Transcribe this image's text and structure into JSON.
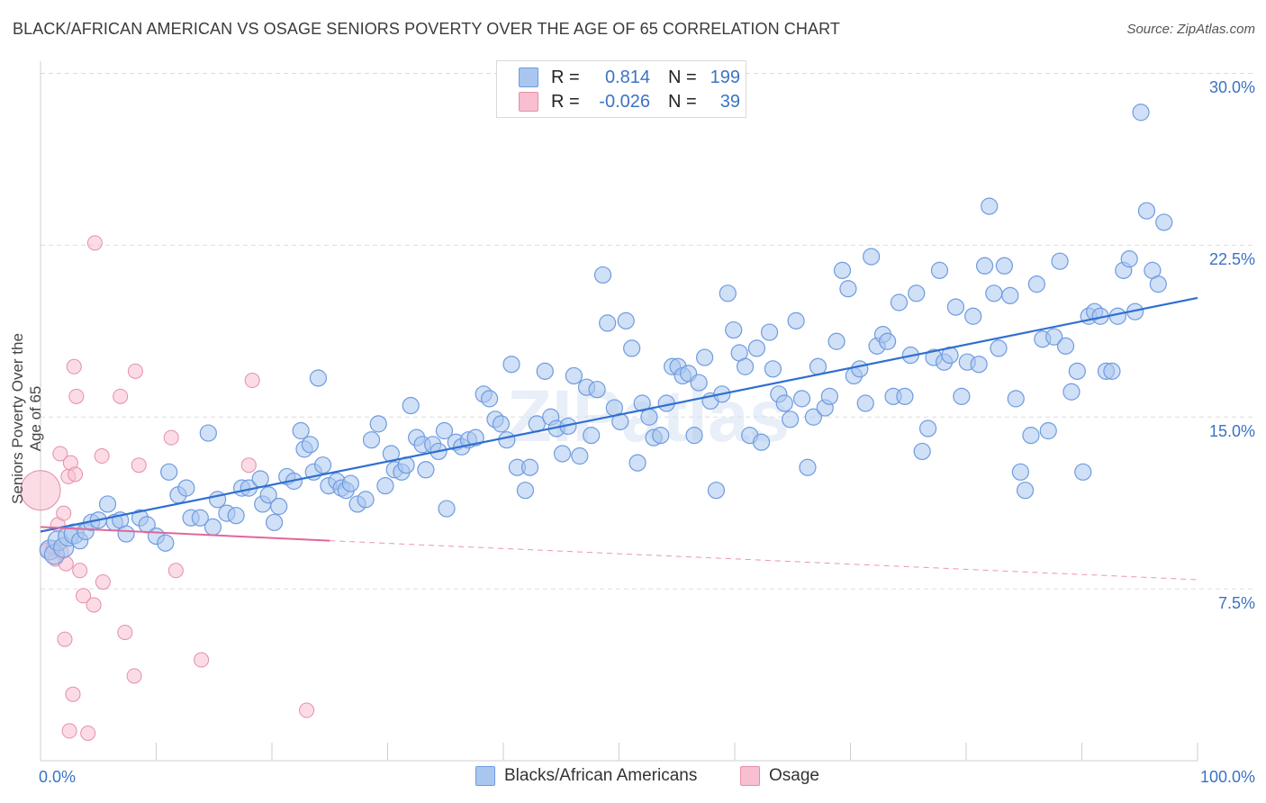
{
  "title": "BLACK/AFRICAN AMERICAN VS OSAGE SENIORS POVERTY OVER THE AGE OF 65 CORRELATION CHART",
  "source": "Source: ZipAtlas.com",
  "watermark": "ZIPatlas",
  "legend_top": {
    "rows": [
      {
        "r_label": "R =",
        "r_value": "0.814",
        "n_label": "N =",
        "n_value": "199"
      },
      {
        "r_label": "R =",
        "r_value": "-0.026",
        "n_label": "N =",
        "n_value": "39"
      }
    ]
  },
  "legend_bottom": {
    "series1": "Blacks/African Americans",
    "series2": "Osage"
  },
  "axes": {
    "ylabel": "Seniors Poverty Over the Age of 65",
    "x_min_label": "0.0%",
    "x_max_label": "100.0%",
    "y_ticks": [
      "30.0%",
      "22.5%",
      "15.0%",
      "7.5%"
    ]
  },
  "colors": {
    "blue_fill": "#a9c6ee",
    "blue_stroke": "#6f9be0",
    "blue_line": "#2f6fd0",
    "pink_fill": "#f7bfd0",
    "pink_stroke": "#e58eab",
    "pink_line": "#e0679a",
    "grid": "#dcdcdc",
    "tick_text": "#3a73c4"
  },
  "chart_data": {
    "type": "scatter",
    "title": "BLACK/AFRICAN AMERICAN VS OSAGE SENIORS POVERTY OVER THE AGE OF 65 CORRELATION CHART",
    "xlabel": "",
    "ylabel": "Seniors Poverty Over the Age of 65",
    "xlim": [
      0,
      100
    ],
    "ylim": [
      0,
      31
    ],
    "y_gridlines": [
      7.5,
      15,
      22.5,
      30
    ],
    "series": [
      {
        "name": "Blacks/African Americans",
        "r": 0.814,
        "n": 199,
        "trend": {
          "x": [
            0,
            100
          ],
          "y": [
            10.0,
            20.2
          ]
        },
        "points": [
          [
            0.8,
            9.2
          ],
          [
            1.2,
            9.0
          ],
          [
            1.5,
            9.6
          ],
          [
            2.0,
            9.3
          ],
          [
            2.4,
            9.8
          ],
          [
            2.9,
            9.9
          ],
          [
            3.4,
            9.6
          ],
          [
            3.9,
            10.0
          ],
          [
            4.4,
            10.4
          ],
          [
            5.0,
            10.5
          ],
          [
            5.8,
            11.2
          ],
          [
            6.4,
            10.4
          ],
          [
            6.9,
            10.5
          ],
          [
            7.4,
            9.9
          ],
          [
            8.6,
            10.6
          ],
          [
            9.2,
            10.3
          ],
          [
            10.0,
            9.8
          ],
          [
            10.8,
            9.5
          ],
          [
            11.1,
            12.6
          ],
          [
            11.9,
            11.6
          ],
          [
            12.6,
            11.9
          ],
          [
            13.0,
            10.6
          ],
          [
            13.8,
            10.6
          ],
          [
            14.5,
            14.3
          ],
          [
            14.9,
            10.2
          ],
          [
            15.3,
            11.4
          ],
          [
            16.1,
            10.8
          ],
          [
            16.9,
            10.7
          ],
          [
            17.4,
            11.9
          ],
          [
            18.0,
            11.9
          ],
          [
            19.0,
            12.3
          ],
          [
            19.2,
            11.2
          ],
          [
            19.7,
            11.6
          ],
          [
            20.2,
            10.4
          ],
          [
            20.6,
            11.1
          ],
          [
            21.3,
            12.4
          ],
          [
            21.9,
            12.2
          ],
          [
            22.5,
            14.4
          ],
          [
            22.8,
            13.6
          ],
          [
            23.3,
            13.8
          ],
          [
            23.6,
            12.6
          ],
          [
            24.0,
            16.7
          ],
          [
            24.4,
            12.9
          ],
          [
            24.9,
            12.0
          ],
          [
            25.6,
            12.2
          ],
          [
            26.0,
            11.9
          ],
          [
            26.4,
            11.8
          ],
          [
            26.8,
            12.1
          ],
          [
            27.4,
            11.2
          ],
          [
            28.1,
            11.4
          ],
          [
            28.6,
            14.0
          ],
          [
            29.2,
            14.7
          ],
          [
            29.8,
            12.0
          ],
          [
            30.3,
            13.4
          ],
          [
            30.6,
            12.7
          ],
          [
            31.2,
            12.6
          ],
          [
            31.6,
            12.9
          ],
          [
            32.0,
            15.5
          ],
          [
            32.5,
            14.1
          ],
          [
            33.0,
            13.8
          ],
          [
            33.3,
            12.7
          ],
          [
            33.9,
            13.8
          ],
          [
            34.4,
            13.5
          ],
          [
            34.9,
            14.4
          ],
          [
            35.1,
            11.0
          ],
          [
            35.9,
            13.9
          ],
          [
            36.4,
            13.7
          ],
          [
            37.0,
            14.0
          ],
          [
            37.6,
            14.1
          ],
          [
            38.3,
            16.0
          ],
          [
            38.8,
            15.8
          ],
          [
            39.3,
            14.9
          ],
          [
            39.8,
            14.7
          ],
          [
            40.3,
            14.0
          ],
          [
            40.7,
            17.3
          ],
          [
            41.2,
            12.8
          ],
          [
            41.9,
            11.8
          ],
          [
            42.3,
            12.8
          ],
          [
            42.9,
            14.7
          ],
          [
            43.6,
            17.0
          ],
          [
            44.1,
            15.0
          ],
          [
            44.6,
            14.5
          ],
          [
            45.1,
            13.4
          ],
          [
            45.6,
            14.6
          ],
          [
            46.1,
            16.8
          ],
          [
            46.6,
            13.3
          ],
          [
            47.2,
            16.3
          ],
          [
            47.6,
            14.2
          ],
          [
            48.1,
            16.2
          ],
          [
            48.6,
            21.2
          ],
          [
            49.0,
            19.1
          ],
          [
            49.6,
            15.4
          ],
          [
            50.1,
            14.8
          ],
          [
            50.6,
            19.2
          ],
          [
            51.1,
            18.0
          ],
          [
            51.6,
            13.0
          ],
          [
            52.0,
            15.6
          ],
          [
            52.6,
            15.0
          ],
          [
            53.0,
            14.1
          ],
          [
            53.6,
            14.2
          ],
          [
            54.1,
            15.6
          ],
          [
            54.6,
            17.2
          ],
          [
            55.1,
            17.2
          ],
          [
            55.5,
            16.8
          ],
          [
            56.0,
            16.9
          ],
          [
            56.5,
            14.2
          ],
          [
            56.9,
            16.5
          ],
          [
            57.4,
            17.6
          ],
          [
            57.9,
            15.7
          ],
          [
            58.4,
            11.8
          ],
          [
            58.9,
            16.0
          ],
          [
            59.4,
            20.4
          ],
          [
            59.9,
            18.8
          ],
          [
            60.4,
            17.8
          ],
          [
            60.9,
            17.2
          ],
          [
            61.3,
            14.2
          ],
          [
            61.9,
            18.0
          ],
          [
            62.3,
            13.9
          ],
          [
            63.0,
            18.7
          ],
          [
            63.3,
            17.1
          ],
          [
            63.8,
            16.0
          ],
          [
            64.3,
            15.6
          ],
          [
            64.8,
            14.9
          ],
          [
            65.3,
            19.2
          ],
          [
            65.8,
            15.8
          ],
          [
            66.3,
            12.8
          ],
          [
            66.8,
            15.0
          ],
          [
            67.2,
            17.2
          ],
          [
            67.8,
            15.4
          ],
          [
            68.2,
            15.9
          ],
          [
            68.8,
            18.3
          ],
          [
            69.3,
            21.4
          ],
          [
            69.8,
            20.6
          ],
          [
            70.3,
            16.8
          ],
          [
            70.8,
            17.1
          ],
          [
            71.3,
            15.6
          ],
          [
            71.8,
            22.0
          ],
          [
            72.3,
            18.1
          ],
          [
            72.8,
            18.6
          ],
          [
            73.2,
            18.3
          ],
          [
            73.7,
            15.9
          ],
          [
            74.2,
            20.0
          ],
          [
            74.7,
            15.9
          ],
          [
            75.2,
            17.7
          ],
          [
            75.7,
            20.4
          ],
          [
            76.2,
            13.5
          ],
          [
            76.7,
            14.5
          ],
          [
            77.2,
            17.6
          ],
          [
            77.7,
            21.4
          ],
          [
            78.1,
            17.4
          ],
          [
            78.6,
            17.7
          ],
          [
            79.1,
            19.8
          ],
          [
            79.6,
            15.9
          ],
          [
            80.1,
            17.4
          ],
          [
            80.6,
            19.4
          ],
          [
            81.1,
            17.3
          ],
          [
            81.6,
            21.6
          ],
          [
            82.0,
            24.2
          ],
          [
            82.4,
            20.4
          ],
          [
            82.8,
            18.0
          ],
          [
            83.3,
            21.6
          ],
          [
            83.8,
            20.3
          ],
          [
            84.3,
            15.8
          ],
          [
            84.7,
            12.6
          ],
          [
            85.1,
            11.8
          ],
          [
            85.6,
            14.2
          ],
          [
            86.1,
            20.8
          ],
          [
            86.6,
            18.4
          ],
          [
            87.1,
            14.4
          ],
          [
            87.6,
            18.5
          ],
          [
            88.1,
            21.8
          ],
          [
            88.6,
            18.1
          ],
          [
            89.1,
            16.1
          ],
          [
            89.6,
            17.0
          ],
          [
            90.1,
            12.6
          ],
          [
            90.6,
            19.4
          ],
          [
            91.1,
            19.6
          ],
          [
            91.6,
            19.4
          ],
          [
            92.1,
            17.0
          ],
          [
            92.6,
            17.0
          ],
          [
            93.1,
            19.4
          ],
          [
            93.6,
            21.4
          ],
          [
            94.1,
            21.9
          ],
          [
            94.6,
            19.6
          ],
          [
            95.1,
            28.3
          ],
          [
            95.6,
            24.0
          ],
          [
            96.1,
            21.4
          ],
          [
            96.6,
            20.8
          ],
          [
            97.1,
            23.5
          ]
        ]
      },
      {
        "name": "Osage",
        "r": -0.026,
        "n": 39,
        "trend_solid": {
          "x": [
            0,
            25
          ],
          "y": [
            10.2,
            9.6
          ]
        },
        "trend_dashed": {
          "x": [
            25,
            100
          ],
          "y": [
            9.6,
            7.9
          ]
        },
        "points": [
          [
            0.0,
            11.8
          ],
          [
            0.6,
            9.2
          ],
          [
            1.1,
            9.3
          ],
          [
            1.3,
            8.8
          ],
          [
            1.5,
            10.3
          ],
          [
            1.7,
            13.4
          ],
          [
            1.8,
            9.1
          ],
          [
            2.0,
            10.8
          ],
          [
            2.1,
            5.3
          ],
          [
            2.2,
            8.6
          ],
          [
            2.4,
            12.4
          ],
          [
            2.5,
            1.3
          ],
          [
            2.6,
            13.0
          ],
          [
            2.8,
            2.9
          ],
          [
            2.9,
            17.2
          ],
          [
            3.0,
            12.5
          ],
          [
            3.1,
            15.9
          ],
          [
            3.4,
            8.3
          ],
          [
            3.7,
            7.2
          ],
          [
            4.1,
            1.2
          ],
          [
            4.6,
            6.8
          ],
          [
            4.7,
            22.6
          ],
          [
            5.3,
            13.3
          ],
          [
            5.4,
            7.8
          ],
          [
            6.9,
            15.9
          ],
          [
            7.3,
            5.6
          ],
          [
            8.1,
            3.7
          ],
          [
            8.2,
            17.0
          ],
          [
            8.5,
            12.9
          ],
          [
            11.3,
            14.1
          ],
          [
            11.7,
            8.3
          ],
          [
            13.9,
            4.4
          ],
          [
            18.0,
            12.9
          ],
          [
            18.3,
            16.6
          ],
          [
            23.0,
            2.2
          ]
        ]
      }
    ],
    "legend": "top-center",
    "grid": true
  }
}
